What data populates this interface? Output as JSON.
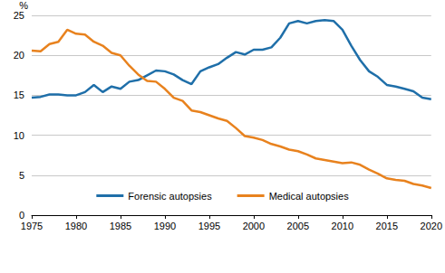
{
  "chart_data": {
    "type": "line",
    "ylabel": "%",
    "x": [
      1975,
      1976,
      1977,
      1978,
      1979,
      1980,
      1981,
      1982,
      1983,
      1984,
      1985,
      1986,
      1987,
      1988,
      1989,
      1990,
      1991,
      1992,
      1993,
      1994,
      1995,
      1996,
      1997,
      1998,
      1999,
      2000,
      2001,
      2002,
      2003,
      2004,
      2005,
      2006,
      2007,
      2008,
      2009,
      2010,
      2011,
      2012,
      2013,
      2014,
      2015,
      2016,
      2017,
      2018,
      2019,
      2020
    ],
    "series": [
      {
        "name": "Forensic autopsies",
        "color": "#1f6fa9",
        "values": [
          14.7,
          14.8,
          15.1,
          15.1,
          15.0,
          15.0,
          15.4,
          16.3,
          15.4,
          16.1,
          15.8,
          16.7,
          16.9,
          17.5,
          18.1,
          18.0,
          17.6,
          16.9,
          16.4,
          18.0,
          18.5,
          18.9,
          19.7,
          20.4,
          20.1,
          20.7,
          20.7,
          21.0,
          22.2,
          24.0,
          24.3,
          24.0,
          24.3,
          24.4,
          24.3,
          23.2,
          21.2,
          19.4,
          18.0,
          17.3,
          16.3,
          16.1,
          15.8,
          15.5,
          14.7,
          14.5
        ]
      },
      {
        "name": "Medical autopsies",
        "color": "#e8821e",
        "values": [
          20.6,
          20.5,
          21.4,
          21.7,
          23.2,
          22.7,
          22.6,
          21.7,
          21.2,
          20.3,
          20.0,
          18.7,
          17.6,
          16.8,
          16.7,
          15.8,
          14.7,
          14.3,
          13.1,
          12.9,
          12.5,
          12.1,
          11.8,
          10.9,
          9.9,
          9.7,
          9.4,
          8.9,
          8.6,
          8.2,
          8.0,
          7.6,
          7.1,
          6.9,
          6.7,
          6.5,
          6.6,
          6.3,
          5.7,
          5.2,
          4.6,
          4.4,
          4.3,
          3.9,
          3.7,
          3.4
        ]
      }
    ],
    "xlim": [
      1975,
      2020
    ],
    "xticks": [
      1975,
      1980,
      1985,
      1990,
      1995,
      2000,
      2005,
      2010,
      2015,
      2020
    ],
    "ylim": [
      0,
      25
    ],
    "yticks": [
      0,
      5,
      10,
      15,
      20,
      25
    ],
    "grid": true,
    "legend": "bottom"
  }
}
